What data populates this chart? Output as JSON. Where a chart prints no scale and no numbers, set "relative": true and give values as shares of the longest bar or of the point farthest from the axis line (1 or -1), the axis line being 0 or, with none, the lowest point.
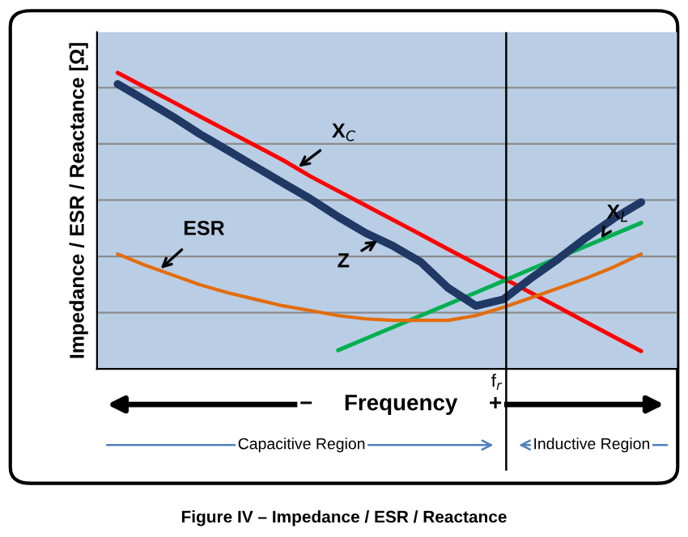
{
  "chart_data": {
    "type": "line",
    "relative": true,
    "ylabel": "Impedance / ESR / Reactance [Ω]",
    "categories": [
      null,
      null,
      null,
      null,
      null,
      null,
      null,
      null,
      null,
      null,
      null,
      null,
      null,
      null,
      null,
      null,
      null,
      null,
      null,
      null
    ],
    "series": [
      {
        "name": "X$_{C}$",
        "color": "#ff0000",
        "values": [
          1,
          0.951,
          0.902,
          0.852,
          0.803,
          0.754,
          0.705,
          0.65,
          0.601,
          0.552,
          0.503,
          0.454,
          0.404,
          0.355,
          0.306,
          0.257,
          0.208,
          0.158,
          0.109,
          0.06
        ]
      },
      {
        "name": "X$_{L}$",
        "color": "#00b050",
        "values": [
          null,
          null,
          null,
          null,
          null,
          null,
          null,
          null,
          0.063,
          0.102,
          0.141,
          0.18,
          0.219,
          0.258,
          0.297,
          0.337,
          0.376,
          0.415,
          0.454,
          0.493
        ]
      },
      {
        "name": "ESR",
        "color": "#e46c0a",
        "values": [
          0.388,
          0.35,
          0.317,
          0.284,
          0.257,
          0.235,
          0.213,
          0.197,
          0.18,
          0.169,
          0.164,
          0.164,
          0.164,
          0.18,
          0.208,
          0.24,
          0.273,
          0.306,
          0.344,
          0.388
        ]
      },
      {
        "name": "Z",
        "color": "#1f3864",
        "values": [
          0.962,
          0.907,
          0.852,
          0.792,
          0.738,
          0.683,
          0.628,
          0.574,
          0.514,
          0.459,
          0.415,
          0.361,
          0.273,
          0.213,
          0.235,
          0.306,
          0.372,
          0.443,
          0.508,
          0.563
        ]
      }
    ],
    "grid": "y",
    "annotations": [
      "f$_{r}$",
      "−     Frequency     +",
      "Capacitive Region",
      "Inductive Region",
      "Figure IV – Impedance / ESR / Reactance"
    ]
  }
}
